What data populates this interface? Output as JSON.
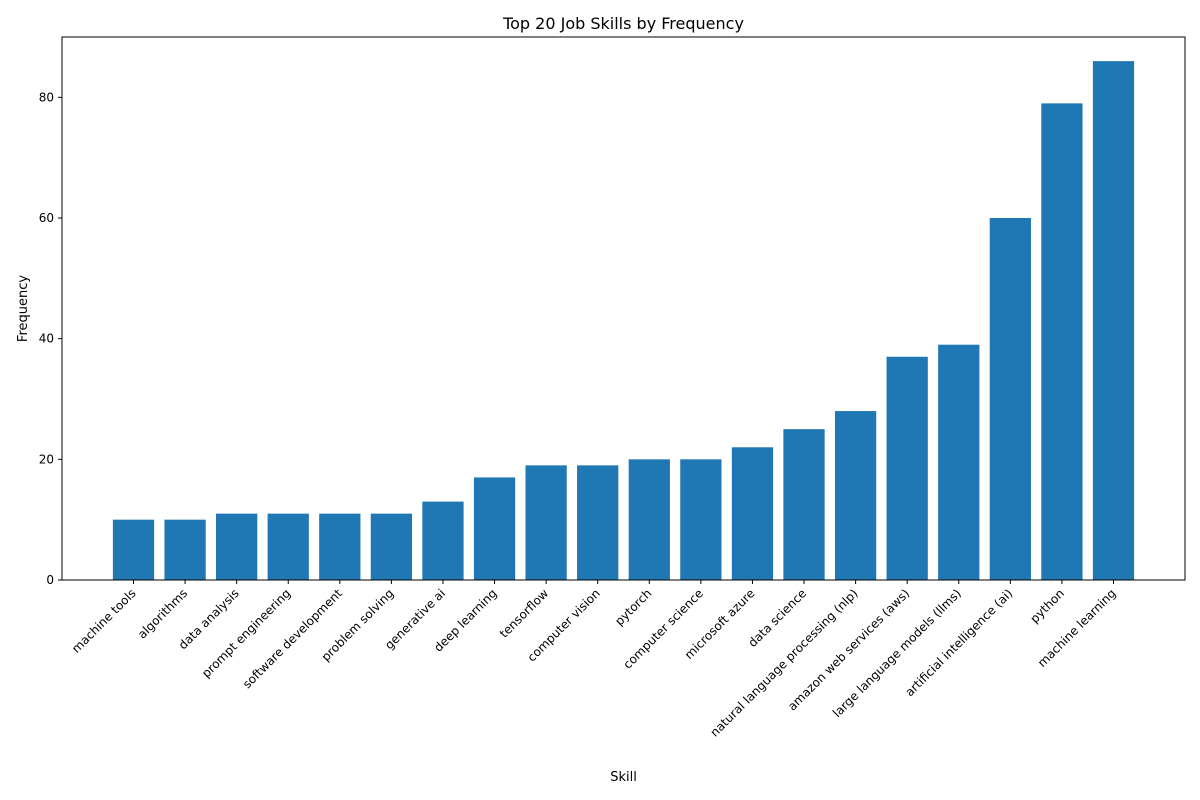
{
  "chart_data": {
    "type": "bar",
    "title": "Top 20 Job Skills by Frequency",
    "xlabel": "Skill",
    "ylabel": "Frequency",
    "ylim": [
      0,
      90
    ],
    "yticks": [
      0,
      20,
      40,
      60,
      80
    ],
    "grid": false,
    "bar_color": "#1f77b4",
    "categories": [
      "machine tools",
      "algorithms",
      "data analysis",
      "prompt engineering",
      "software development",
      "problem solving",
      "generative ai",
      "deep learning",
      "tensorflow",
      "computer vision",
      "pytorch",
      "computer science",
      "microsoft azure",
      "data science",
      "natural language processing (nlp)",
      "amazon web services (aws)",
      "large language models (llms)",
      "artificial intelligence (ai)",
      "python",
      "machine learning"
    ],
    "values": [
      10,
      10,
      11,
      11,
      11,
      11,
      13,
      17,
      19,
      19,
      20,
      20,
      22,
      25,
      28,
      37,
      39,
      60,
      79,
      86
    ]
  }
}
